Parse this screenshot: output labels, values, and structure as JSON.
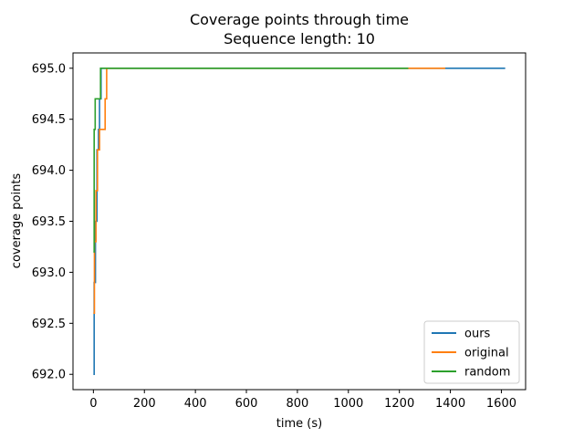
{
  "chart_data": {
    "type": "line",
    "title": "Coverage points through time",
    "subtitle": "Sequence length: 10",
    "xlabel": "time (s)",
    "ylabel": "coverage points",
    "xlim": [
      -80,
      1695
    ],
    "ylim": [
      691.85,
      695.15
    ],
    "xticks": [
      0,
      200,
      400,
      600,
      800,
      1000,
      1200,
      1400,
      1600
    ],
    "xtick_labels": [
      "0",
      "200",
      "400",
      "600",
      "800",
      "1000",
      "1200",
      "1400",
      "1600"
    ],
    "yticks": [
      692.0,
      692.5,
      693.0,
      693.5,
      694.0,
      694.5,
      695.0
    ],
    "ytick_labels": [
      "692.0",
      "692.5",
      "693.0",
      "693.5",
      "694.0",
      "694.5",
      "695.0"
    ],
    "grid": false,
    "legend_position": "bottom-right",
    "series": [
      {
        "name": "ours",
        "color": "#1f77b4",
        "x": [
          0,
          3,
          3,
          8,
          8,
          14,
          14,
          20,
          20,
          24,
          24,
          30,
          30,
          38,
          38,
          1615
        ],
        "y": [
          692.0,
          692.0,
          692.9,
          692.9,
          693.5,
          693.5,
          694.2,
          694.2,
          694.4,
          694.4,
          694.7,
          694.7,
          695.0,
          695.0,
          695.0,
          695.0
        ]
      },
      {
        "name": "original",
        "color": "#ff7f0e",
        "x": [
          0,
          4,
          4,
          10,
          10,
          16,
          16,
          24,
          24,
          30,
          30,
          46,
          46,
          52,
          52,
          1380
        ],
        "y": [
          692.6,
          692.6,
          693.3,
          693.3,
          693.8,
          693.8,
          694.2,
          694.2,
          694.4,
          694.4,
          694.4,
          694.4,
          694.7,
          694.7,
          695.0,
          695.0
        ]
      },
      {
        "name": "random",
        "color": "#2ca02c",
        "x": [
          0,
          3,
          3,
          7,
          7,
          14,
          14,
          28,
          28,
          34,
          34,
          1235
        ],
        "y": [
          693.2,
          693.2,
          694.4,
          694.4,
          694.7,
          694.7,
          694.7,
          694.7,
          695.0,
          695.0,
          695.0,
          695.0
        ]
      }
    ]
  }
}
